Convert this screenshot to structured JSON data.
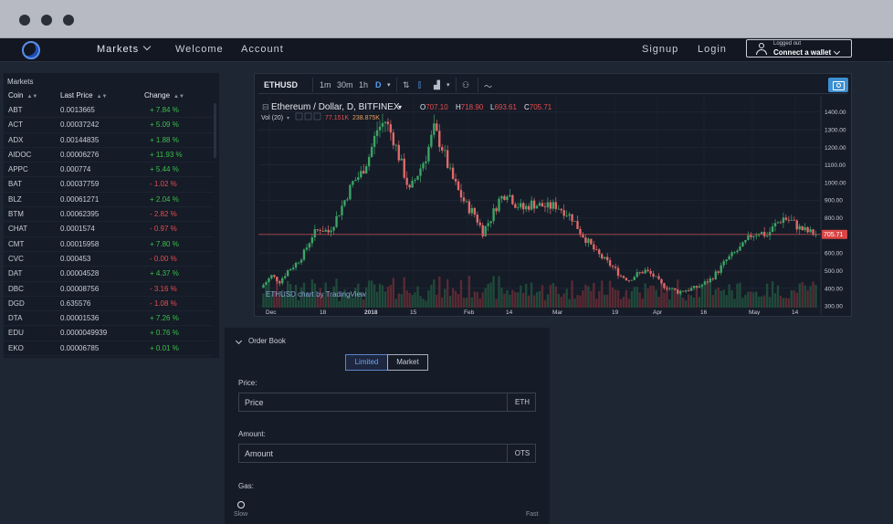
{
  "nav": {
    "markets": "Markets",
    "welcome": "Welcome",
    "account": "Account",
    "signup": "Signup",
    "login": "Login",
    "wallet_status": "Logged out",
    "wallet_cta": "Connect a wallet"
  },
  "markets": {
    "title": "Markets",
    "columns": {
      "coin": "Coin",
      "last_price": "Last Price",
      "change": "Change"
    },
    "rows": [
      {
        "coin": "ABT",
        "price": "0.0013665",
        "change": "+ 7.84 %",
        "dir": "up"
      },
      {
        "coin": "ACT",
        "price": "0.00037242",
        "change": "+ 5.09 %",
        "dir": "up"
      },
      {
        "coin": "ADX",
        "price": "0.00144835",
        "change": "+ 1.88 %",
        "dir": "up"
      },
      {
        "coin": "AIDOC",
        "price": "0.00006276",
        "change": "+ 11.93 %",
        "dir": "up"
      },
      {
        "coin": "APPC",
        "price": "0.000774",
        "change": "+ 5.44 %",
        "dir": "up"
      },
      {
        "coin": "BAT",
        "price": "0.00037759",
        "change": "- 1.02 %",
        "dir": "down"
      },
      {
        "coin": "BLZ",
        "price": "0.00061271",
        "change": "+ 2.04 %",
        "dir": "up"
      },
      {
        "coin": "BTM",
        "price": "0.00062395",
        "change": "- 2.82 %",
        "dir": "down"
      },
      {
        "coin": "CHAT",
        "price": "0.0001574",
        "change": "- 0.97 %",
        "dir": "down"
      },
      {
        "coin": "CMT",
        "price": "0.00015958",
        "change": "+ 7.80 %",
        "dir": "up"
      },
      {
        "coin": "CVC",
        "price": "0.000453",
        "change": "- 0.00 %",
        "dir": "down"
      },
      {
        "coin": "DAT",
        "price": "0.00004528",
        "change": "+ 4.37 %",
        "dir": "up"
      },
      {
        "coin": "DBC",
        "price": "0.00008756",
        "change": "- 3.16 %",
        "dir": "down"
      },
      {
        "coin": "DGD",
        "price": "0.635576",
        "change": "- 1.08 %",
        "dir": "down"
      },
      {
        "coin": "DTA",
        "price": "0.00001536",
        "change": "+ 7.26 %",
        "dir": "up"
      },
      {
        "coin": "EDU",
        "price": "0.0000049939",
        "change": "+ 0.76 %",
        "dir": "up"
      },
      {
        "coin": "EKO",
        "price": "0.00006785",
        "change": "+ 0.01 %",
        "dir": "up"
      }
    ]
  },
  "chart_toolbar": {
    "symbol": "ETHUSD",
    "intervals": [
      "1m",
      "30m",
      "1h",
      "D"
    ],
    "active_interval": "D"
  },
  "chart_data": {
    "type": "candlestick",
    "title": "Ethereum / Dollar, D, BITFINEX",
    "ohlc_label": {
      "O": "707.10",
      "H": "718.90",
      "L": "693.61",
      "C": "705.71"
    },
    "volume_label": "Vol (20)",
    "volume_values": [
      "77.151K",
      "238.875K"
    ],
    "last_price": "705.71",
    "watermark": "ETHUSD chart by TradingView",
    "y_ticks": [
      "1400.00",
      "1300.00",
      "1200.00",
      "1100.00",
      "1000.00",
      "900.00",
      "800.00",
      "700.00",
      "600.00",
      "500.00",
      "400.00",
      "300.00"
    ],
    "ylim": [
      290,
      1440
    ],
    "x_ticks": [
      "Dec",
      "18",
      "2018",
      "15",
      "Feb",
      "14",
      "Mar",
      "19",
      "Apr",
      "16",
      "May",
      "14"
    ],
    "close_path": [
      420,
      470,
      440,
      500,
      540,
      600,
      700,
      740,
      720,
      800,
      900,
      1000,
      1050,
      1150,
      1300,
      1350,
      1250,
      1100,
      950,
      1050,
      1150,
      1300,
      1200,
      1050,
      950,
      870,
      820,
      720,
      800,
      900,
      950,
      880,
      850,
      880,
      870,
      860,
      870,
      840,
      800,
      720,
      660,
      600,
      560,
      520,
      470,
      450,
      480,
      500,
      470,
      420,
      400,
      380,
      390,
      400,
      420,
      450,
      500,
      560,
      600,
      640,
      700,
      720,
      700,
      760,
      800,
      780,
      740,
      720,
      706
    ],
    "colors": {
      "up": "#3ca565",
      "down": "#e06a6a",
      "price_line": "#c04848"
    }
  },
  "order_book": {
    "title": "Order Book",
    "tab_limited": "Limited",
    "tab_market": "Market",
    "price_label": "Price:",
    "price_placeholder": "Price",
    "price_unit": "ETH",
    "amount_label": "Amount:",
    "amount_placeholder": "Amount",
    "amount_unit": "OTS",
    "gas_label": "Gas:",
    "gas_slow": "Slow",
    "gas_fast": "Fast"
  }
}
